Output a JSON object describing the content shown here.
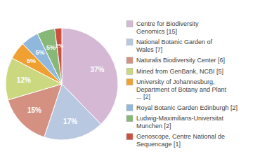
{
  "chart_data": {
    "type": "pie",
    "categories": [
      "Centre for Biodiversity\nGenomics [15]",
      "National Botanic Garden of\nWales [7]",
      "Naturalis Biodiversity Center [6]",
      "Mined from GenBank, NCBI [5]",
      "University of Johannesburg,\nDepartment of Botany and Plant\n... [2]",
      "Royal Botanic Garden Edinburgh [2]",
      "Ludwig-Maximilians-Universitat\nMunchen [2]",
      "Genoscope, Centre National de\nSequencage [1]"
    ],
    "values": [
      37,
      17,
      15,
      12,
      5,
      5,
      5,
      2
    ],
    "value_labels": [
      "37%",
      "17%",
      "15%",
      "12%",
      "5%",
      "5%",
      "5%",
      "2%"
    ],
    "colors": [
      "#d4b8d4",
      "#b8c8e0",
      "#d49080",
      "#ccd880",
      "#f0a030",
      "#90b8dc",
      "#88b878",
      "#cc5040"
    ],
    "data_labels": true,
    "legend": "right"
  }
}
